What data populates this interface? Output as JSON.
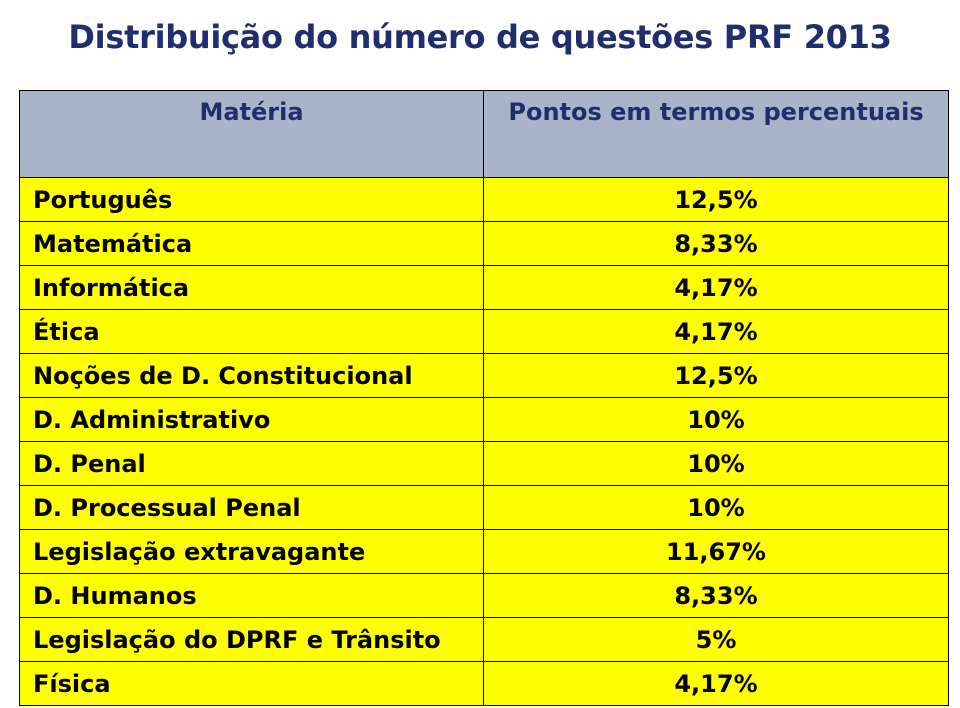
{
  "chart_data": {
    "type": "table",
    "title": "Distribuição do número de questões PRF 2013",
    "columns": [
      "Matéria",
      "Pontos em termos percentuais"
    ],
    "rows": [
      {
        "subject": "Português",
        "value": "12,5%"
      },
      {
        "subject": "Matemática",
        "value": "8,33%"
      },
      {
        "subject": "Informática",
        "value": "4,17%"
      },
      {
        "subject": "Ética",
        "value": "4,17%"
      },
      {
        "subject": "Noções de D. Constitucional",
        "value": "12,5%"
      },
      {
        "subject": "D. Administrativo",
        "value": "10%"
      },
      {
        "subject": "D. Penal",
        "value": "10%"
      },
      {
        "subject": "D. Processual Penal",
        "value": "10%"
      },
      {
        "subject": "Legislação extravagante",
        "value": "11,67%"
      },
      {
        "subject": "D. Humanos",
        "value": "8,33%"
      },
      {
        "subject": "Legislação do DPRF e Trânsito",
        "value": "5%"
      },
      {
        "subject": "Física",
        "value": "4,17%"
      }
    ],
    "values_percent": [
      12.5,
      8.33,
      4.17,
      4.17,
      12.5,
      10,
      10,
      10,
      11.67,
      8.33,
      5,
      4.17
    ],
    "colors": {
      "title": "#1f2e6e",
      "header_background": "#a9b4c8",
      "header_text": "#1f2e6e",
      "row_background": "#ffff00",
      "row_text": "#000000",
      "border": "#000000"
    }
  }
}
